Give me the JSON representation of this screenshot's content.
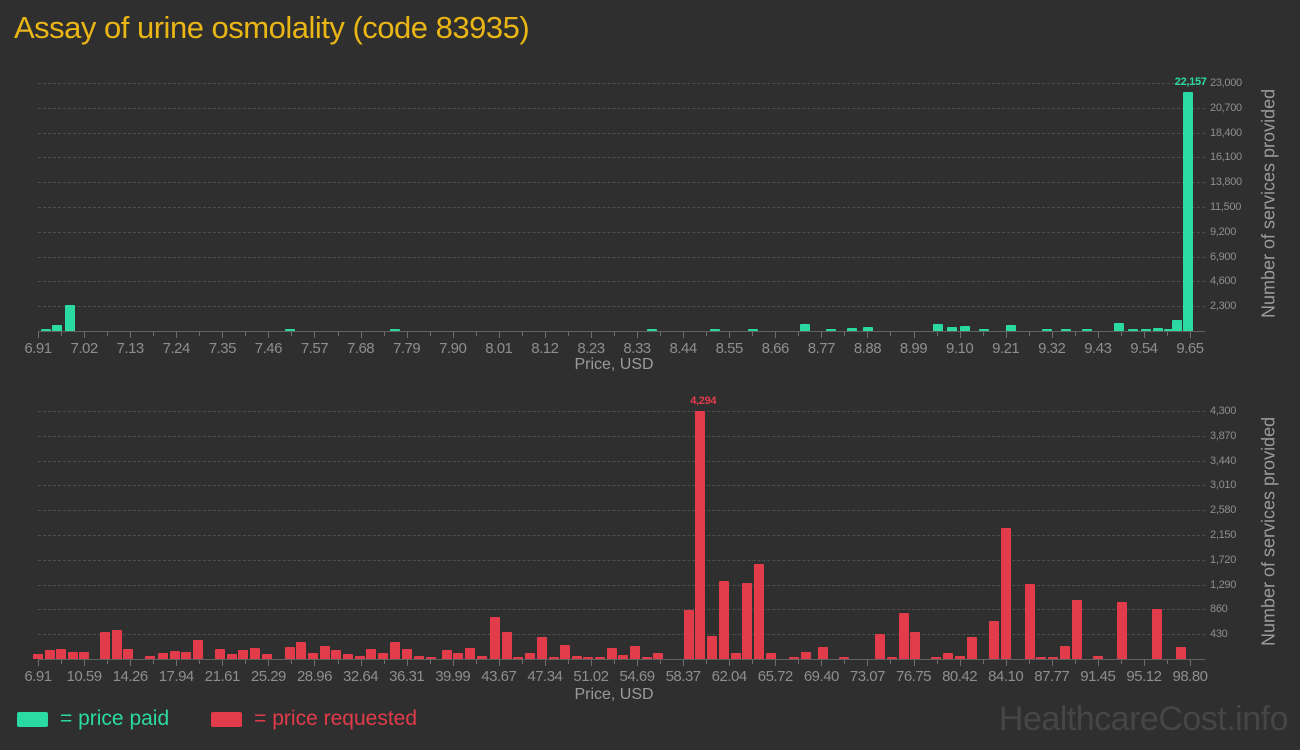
{
  "title": "Assay of urine osmolality (code 83935)",
  "watermark": "HealthcareCost.info",
  "legend": {
    "paid_label": "= price paid",
    "requested_label": "= price requested"
  },
  "colors": {
    "paid": "#2bd9a2",
    "requested": "#e23b4a",
    "title": "#e9b615",
    "background": "#2f2f2f",
    "grid": "#4e4e4e",
    "tick_text": "#8e8e8e",
    "axis_title_text": "#9b9b9b",
    "watermark": "#464646"
  },
  "chart_data": [
    {
      "type": "bar",
      "name": "price paid",
      "title": "",
      "xlabel": "Price, USD",
      "ylabel": "Number of services provided",
      "xlim": [
        6.91,
        9.65
      ],
      "ylim": [
        0,
        23000
      ],
      "y_tick_step": 2300,
      "grid": true,
      "legend_position": "bottom-left",
      "peak_annotation": "22,157",
      "x_tick_labels": [
        "6.91",
        "7.02",
        "7.13",
        "7.24",
        "7.35",
        "7.46",
        "7.57",
        "7.68",
        "7.79",
        "7.90",
        "8.01",
        "8.12",
        "8.23",
        "8.33",
        "8.44",
        "8.55",
        "8.66",
        "8.77",
        "8.88",
        "8.99",
        "9.10",
        "9.21",
        "9.32",
        "9.43",
        "9.54",
        "9.65"
      ],
      "y_tick_labels": [
        "2,300",
        "4,600",
        "6,900",
        "9,200",
        "11,500",
        "13,800",
        "16,100",
        "18,400",
        "20,700",
        "23,000"
      ],
      "points": [
        [
          6.93,
          160
        ],
        [
          6.955,
          530
        ],
        [
          6.985,
          2450
        ],
        [
          7.51,
          60
        ],
        [
          7.76,
          130
        ],
        [
          8.37,
          90
        ],
        [
          8.52,
          120
        ],
        [
          8.61,
          60
        ],
        [
          8.735,
          680
        ],
        [
          8.795,
          230
        ],
        [
          8.845,
          240
        ],
        [
          8.885,
          370
        ],
        [
          9.05,
          620
        ],
        [
          9.085,
          400
        ],
        [
          9.115,
          460
        ],
        [
          9.16,
          150
        ],
        [
          9.225,
          590
        ],
        [
          9.31,
          150
        ],
        [
          9.355,
          220
        ],
        [
          9.405,
          150
        ],
        [
          9.48,
          740
        ],
        [
          9.515,
          150
        ],
        [
          9.545,
          150
        ],
        [
          9.575,
          280
        ],
        [
          9.6,
          150
        ],
        [
          9.62,
          1020
        ],
        [
          9.645,
          22157
        ]
      ]
    },
    {
      "type": "bar",
      "name": "price requested",
      "title": "",
      "xlabel": "Price, USD",
      "ylabel": "Number of services provided",
      "xlim": [
        6.91,
        98.8
      ],
      "ylim": [
        0,
        4300
      ],
      "y_tick_step": 430,
      "grid": true,
      "legend_position": "bottom-left",
      "peak_annotation": "4,294",
      "x_tick_labels": [
        "6.91",
        "10.59",
        "14.26",
        "17.94",
        "21.61",
        "25.29",
        "28.96",
        "32.64",
        "36.31",
        "39.99",
        "43.67",
        "47.34",
        "51.02",
        "54.69",
        "58.37",
        "62.04",
        "65.72",
        "69.40",
        "73.07",
        "76.75",
        "80.42",
        "84.10",
        "87.77",
        "91.45",
        "95.12",
        "98.80"
      ],
      "y_tick_labels": [
        "430",
        "860",
        "1,290",
        "1,720",
        "2,150",
        "2,580",
        "3,010",
        "3,440",
        "3,870",
        "4,300"
      ],
      "points": [
        [
          6.93,
          90
        ],
        [
          7.85,
          160
        ],
        [
          8.75,
          180
        ],
        [
          9.7,
          130
        ],
        [
          10.6,
          120
        ],
        [
          12.25,
          470
        ],
        [
          13.2,
          510
        ],
        [
          14.1,
          180
        ],
        [
          15.85,
          50
        ],
        [
          16.85,
          100
        ],
        [
          17.8,
          140
        ],
        [
          18.7,
          115
        ],
        [
          19.65,
          335
        ],
        [
          21.45,
          170
        ],
        [
          22.4,
          80
        ],
        [
          23.3,
          155
        ],
        [
          24.25,
          190
        ],
        [
          25.2,
          90
        ],
        [
          27.0,
          210
        ],
        [
          27.9,
          295
        ],
        [
          28.85,
          100
        ],
        [
          29.8,
          220
        ],
        [
          30.7,
          155
        ],
        [
          31.65,
          90
        ],
        [
          32.6,
          60
        ],
        [
          33.5,
          170
        ],
        [
          34.45,
          110
        ],
        [
          35.4,
          300
        ],
        [
          36.35,
          180
        ],
        [
          37.3,
          60
        ],
        [
          38.25,
          30
        ],
        [
          39.55,
          160
        ],
        [
          40.45,
          110
        ],
        [
          41.4,
          185
        ],
        [
          42.35,
          50
        ],
        [
          43.4,
          730
        ],
        [
          44.3,
          460
        ],
        [
          45.2,
          25
        ],
        [
          46.15,
          100
        ],
        [
          47.1,
          375
        ],
        [
          48.05,
          25
        ],
        [
          48.95,
          240
        ],
        [
          49.9,
          52
        ],
        [
          50.8,
          15
        ],
        [
          51.75,
          15
        ],
        [
          52.7,
          185
        ],
        [
          53.6,
          70
        ],
        [
          54.55,
          230
        ],
        [
          55.45,
          40
        ],
        [
          56.4,
          110
        ],
        [
          58.8,
          850
        ],
        [
          59.7,
          4294
        ],
        [
          60.65,
          400
        ],
        [
          61.6,
          1360
        ],
        [
          62.55,
          110
        ],
        [
          63.5,
          1310
        ],
        [
          64.45,
          1640
        ],
        [
          65.4,
          100
        ],
        [
          67.25,
          40
        ],
        [
          68.2,
          130
        ],
        [
          69.55,
          215
        ],
        [
          71.2,
          25
        ],
        [
          74.1,
          430
        ],
        [
          75.0,
          10
        ],
        [
          75.95,
          800
        ],
        [
          76.9,
          470
        ],
        [
          78.55,
          20
        ],
        [
          79.5,
          100
        ],
        [
          80.45,
          60
        ],
        [
          81.4,
          375
        ],
        [
          83.2,
          660
        ],
        [
          84.1,
          2270
        ],
        [
          86.0,
          1300
        ],
        [
          86.95,
          35
        ],
        [
          87.85,
          25
        ],
        [
          88.85,
          230
        ],
        [
          89.8,
          1030
        ],
        [
          91.5,
          50
        ],
        [
          93.4,
          980
        ],
        [
          96.2,
          870
        ],
        [
          98.1,
          200
        ]
      ]
    }
  ]
}
